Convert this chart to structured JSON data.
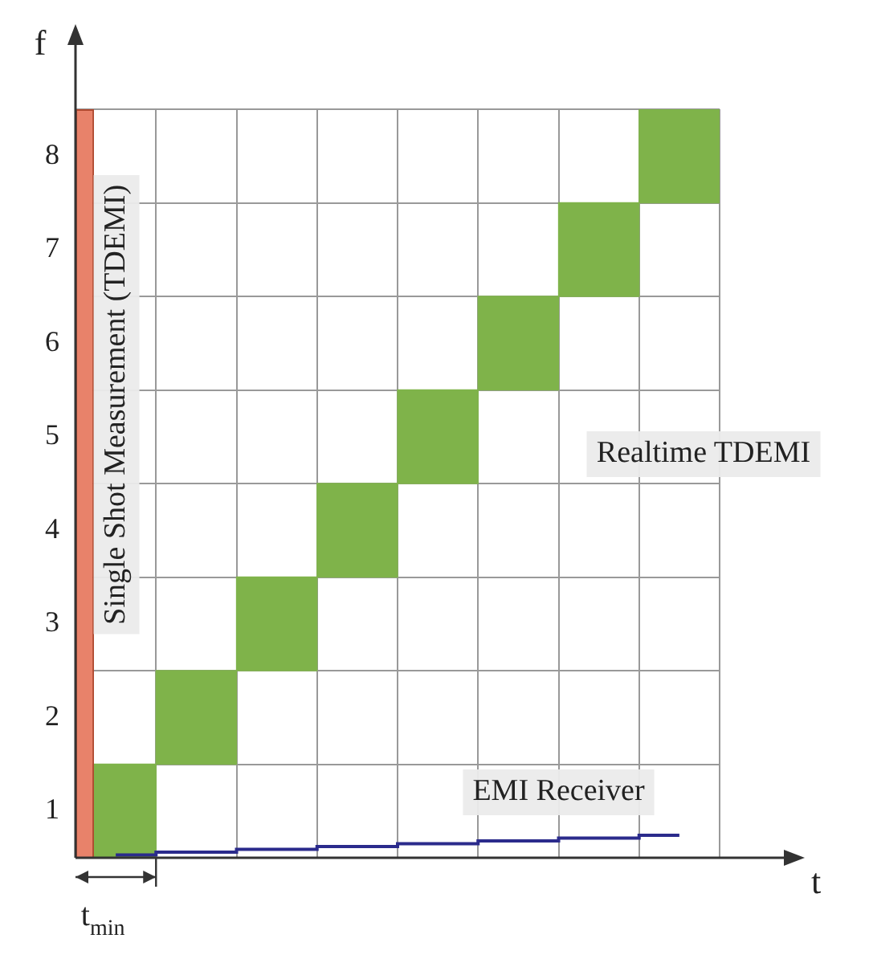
{
  "chart_data": {
    "type": "bar",
    "xlabel": "t",
    "ylabel": "f",
    "categories": [
      null,
      null,
      null,
      null,
      null,
      null,
      null,
      null
    ],
    "ylim": [
      0,
      8
    ],
    "tick_labels": "y",
    "grid": true,
    "legend": false,
    "yticks": [
      {
        "value": 0,
        "label": null
      },
      {
        "value": 0.5,
        "label": "1"
      },
      {
        "value": 1,
        "label": null
      },
      {
        "value": 1.5,
        "label": "2"
      },
      {
        "value": 2,
        "label": null
      },
      {
        "value": 2.5,
        "label": "3"
      },
      {
        "value": 3,
        "label": null
      },
      {
        "value": 3.5,
        "label": "4"
      },
      {
        "value": 4,
        "label": null
      },
      {
        "value": 4.5,
        "label": "5"
      },
      {
        "value": 5,
        "label": null
      },
      {
        "value": 5.5,
        "label": "6"
      },
      {
        "value": 6,
        "label": null
      },
      {
        "value": 6.5,
        "label": "7"
      },
      {
        "value": 7,
        "label": null
      },
      {
        "value": 7.5,
        "label": "8"
      },
      {
        "value": 8,
        "label": null
      }
    ],
    "series": [
      {
        "name": "Realtime TDEMI",
        "color": "#7fb34a",
        "base": [
          0,
          1,
          2,
          3,
          4,
          5,
          6,
          7
        ],
        "values": [
          1,
          1,
          1,
          1,
          1,
          1,
          1,
          1
        ]
      },
      {
        "name": "Single Shot Measurement (TDEMI)",
        "color": "#e8826a",
        "values": [
          8,
          null,
          null,
          null,
          null,
          null,
          null,
          null
        ]
      },
      {
        "type": "step",
        "name": "EMI Receiver",
        "color": "#2b2b8c",
        "values": [
          0.03,
          0.06,
          0.09,
          0.12,
          0.15,
          0.18,
          0.21,
          0.24
        ]
      }
    ],
    "annotations": [
      "t$_{min}$"
    ]
  }
}
